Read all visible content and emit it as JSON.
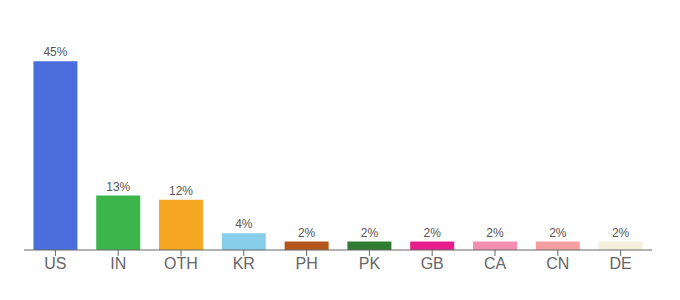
{
  "chart_data": {
    "type": "bar",
    "categories": [
      "US",
      "IN",
      "OTH",
      "KR",
      "PH",
      "PK",
      "GB",
      "CA",
      "CN",
      "DE"
    ],
    "values": [
      45,
      13,
      12,
      4,
      2,
      2,
      2,
      2,
      2,
      2
    ],
    "value_labels": [
      "45%",
      "13%",
      "12%",
      "4%",
      "2%",
      "2%",
      "2%",
      "2%",
      "2%",
      "2%"
    ],
    "colors": [
      "#4a6edb",
      "#3cb54a",
      "#f5a623",
      "#87ceeb",
      "#b5561c",
      "#2e7d32",
      "#e91e8c",
      "#f48fb1",
      "#f4a0a0",
      "#f5f0dc"
    ],
    "ylim": [
      0,
      52
    ],
    "data_labels": true,
    "tick_labels": "x",
    "grid": false
  }
}
